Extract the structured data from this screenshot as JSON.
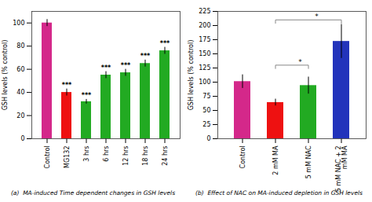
{
  "chart_data": [
    {
      "type": "bar",
      "categories": [
        "Control",
        "MG132",
        "3 hrs",
        "6 hrs",
        "12 hrs",
        "18 hrs",
        "24 hrs"
      ],
      "values": [
        100,
        40,
        32,
        55,
        57,
        65,
        76
      ],
      "errors": [
        3,
        3,
        2,
        3,
        3,
        3,
        3
      ],
      "colors": [
        "#d4288a",
        "#ee1111",
        "#22aa22",
        "#22aa22",
        "#22aa22",
        "#22aa22",
        "#22aa22"
      ],
      "ylabel": "GSH levels (% control)",
      "ylim": [
        0,
        110
      ],
      "yticks": [
        0,
        20,
        40,
        60,
        80,
        100
      ],
      "significance": [
        null,
        "***",
        "***",
        "***",
        "***",
        "***",
        "***"
      ],
      "caption": "(a)  MA-induced Time dependent changes in GSH levels"
    },
    {
      "type": "bar",
      "categories": [
        "Control",
        "2 mM MA",
        "5 mM NAC",
        "5 mM NAC + 2\nmM MA"
      ],
      "values": [
        101,
        64,
        94,
        172
      ],
      "errors": [
        12,
        6,
        15,
        30
      ],
      "colors": [
        "#d4288a",
        "#ee1111",
        "#22aa22",
        "#2233bb"
      ],
      "ylabel": "GSH levels (% control)",
      "ylim": [
        0,
        225
      ],
      "yticks": [
        0,
        25,
        50,
        75,
        100,
        125,
        150,
        175,
        200,
        225
      ],
      "brackets": [
        {
          "from": "2 mM MA",
          "to": "5 mM NAC",
          "label": "*",
          "height": 130
        },
        {
          "from": "2 mM MA",
          "to": "5 mM NAC + 2\nmM MA",
          "label": "*",
          "height": 210
        }
      ],
      "caption": "(b)  Effect of NAC on MA-induced depletion in GSH levels"
    }
  ]
}
